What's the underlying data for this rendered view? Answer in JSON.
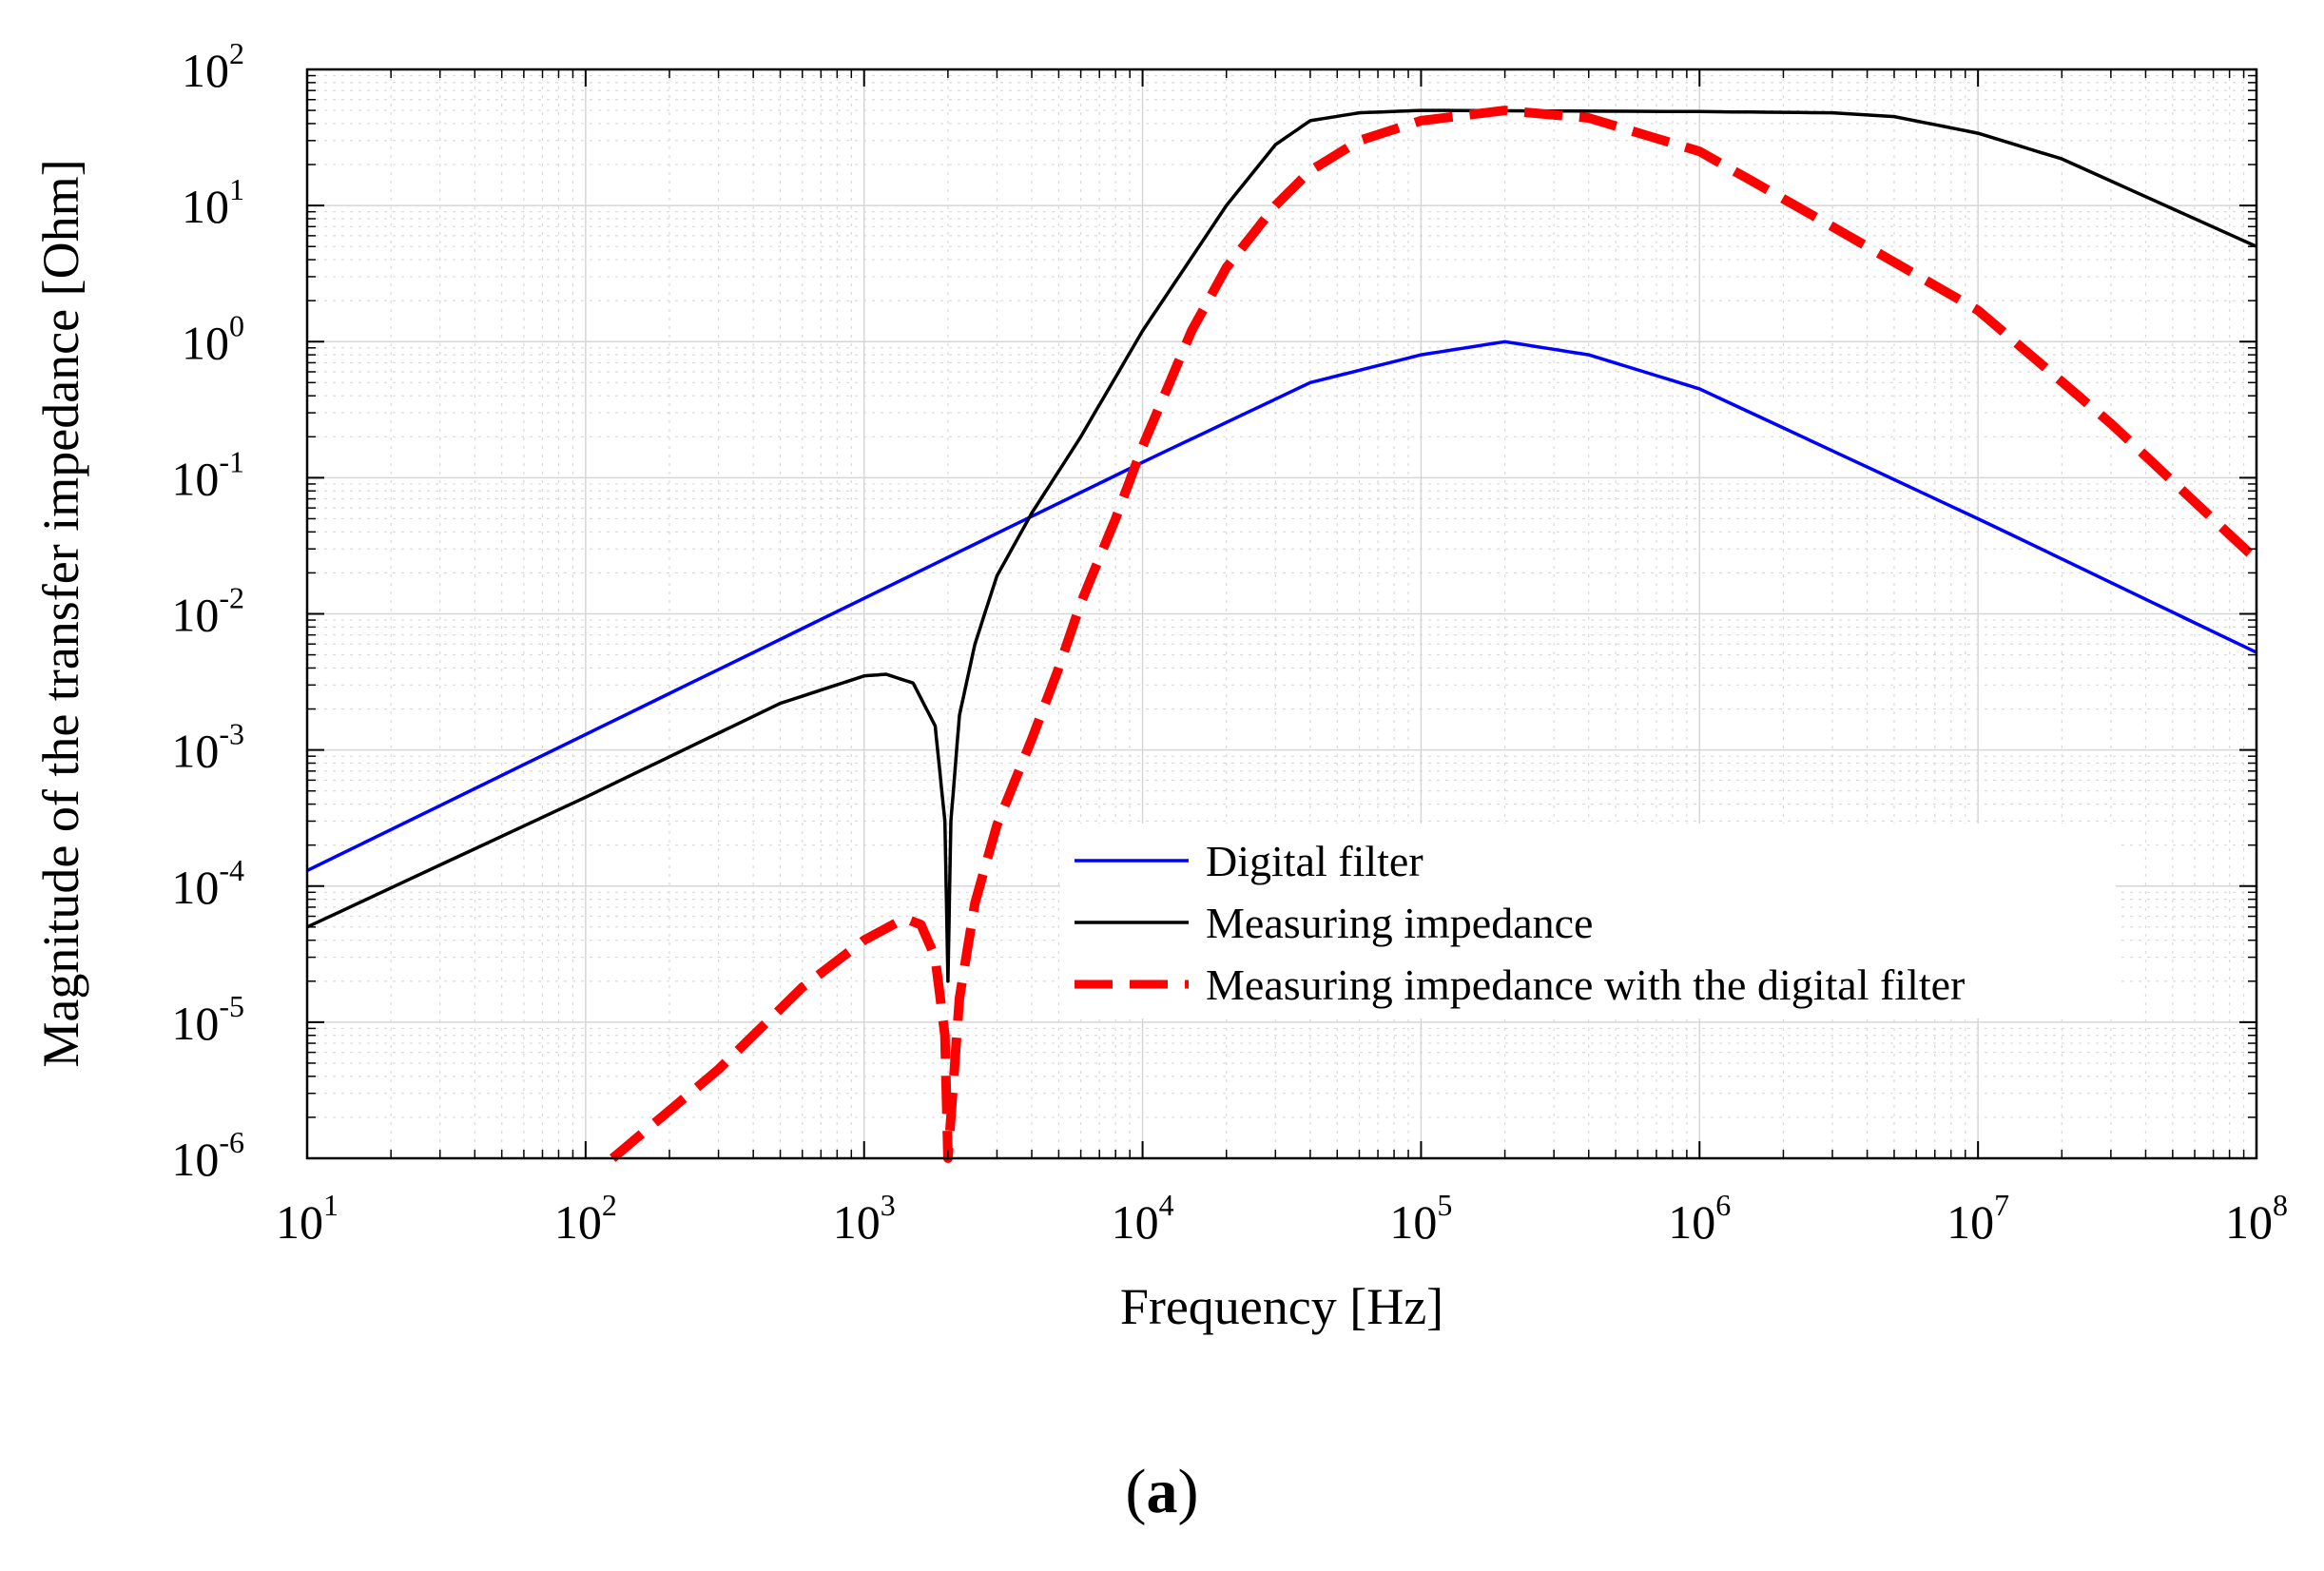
{
  "chart_data": {
    "type": "line",
    "xscale": "log",
    "yscale": "log",
    "xlabel": "Frequency [Hz]",
    "ylabel": "Magnitude of the transfer impedance [Ohm]",
    "xlim": [
      10,
      100000000
    ],
    "ylim": [
      1e-06,
      100
    ],
    "grid": true,
    "legend_position": "lower-center-right",
    "x_ticks": [
      {
        "base": "10",
        "exp": "1"
      },
      {
        "base": "10",
        "exp": "2"
      },
      {
        "base": "10",
        "exp": "3"
      },
      {
        "base": "10",
        "exp": "4"
      },
      {
        "base": "10",
        "exp": "5"
      },
      {
        "base": "10",
        "exp": "6"
      },
      {
        "base": "10",
        "exp": "7"
      },
      {
        "base": "10",
        "exp": "8"
      }
    ],
    "y_ticks": [
      {
        "base": "10",
        "exp": "-6"
      },
      {
        "base": "10",
        "exp": "-5"
      },
      {
        "base": "10",
        "exp": "-4"
      },
      {
        "base": "10",
        "exp": "-3"
      },
      {
        "base": "10",
        "exp": "-2"
      },
      {
        "base": "10",
        "exp": "-1"
      },
      {
        "base": "10",
        "exp": "0"
      },
      {
        "base": "10",
        "exp": "1"
      },
      {
        "base": "10",
        "exp": "2"
      }
    ],
    "series": [
      {
        "name": "Digital filter",
        "color": "#0000ff",
        "style": "solid",
        "points": [
          [
            10,
            0.00013
          ],
          [
            100,
            0.0013
          ],
          [
            1000,
            0.013
          ],
          [
            10000,
            0.13
          ],
          [
            40000,
            0.5
          ],
          [
            100000,
            0.8
          ],
          [
            200000,
            1.0
          ],
          [
            400000,
            0.8
          ],
          [
            1000000,
            0.45
          ],
          [
            10000000,
            0.05
          ],
          [
            100000000,
            0.0052
          ]
        ]
      },
      {
        "name": "Measuring impedance",
        "color": "#000000",
        "style": "solid",
        "points": [
          [
            10,
            5e-05
          ],
          [
            100,
            0.00045
          ],
          [
            500,
            0.0022
          ],
          [
            1000,
            0.0035
          ],
          [
            1200,
            0.0036
          ],
          [
            1500,
            0.0031
          ],
          [
            1800,
            0.0015
          ],
          [
            1950,
            0.0003
          ],
          [
            2000,
            2e-05
          ],
          [
            2050,
            0.0003
          ],
          [
            2200,
            0.0018
          ],
          [
            2500,
            0.006
          ],
          [
            3000,
            0.019
          ],
          [
            4000,
            0.055
          ],
          [
            6000,
            0.2
          ],
          [
            10000,
            1.2
          ],
          [
            20000,
            10
          ],
          [
            30000,
            28
          ],
          [
            40000,
            42
          ],
          [
            60000,
            48
          ],
          [
            100000,
            50
          ],
          [
            1000000,
            49
          ],
          [
            3000000,
            48
          ],
          [
            5000000,
            45
          ],
          [
            10000000,
            34
          ],
          [
            20000000,
            22
          ],
          [
            100000000,
            5
          ]
        ]
      },
      {
        "name": "Measuring impedance with the digital filter",
        "color": "#ff0000",
        "style": "dashed",
        "points": [
          [
            125,
            1e-06
          ],
          [
            300,
            4.5e-06
          ],
          [
            600,
            1.8e-05
          ],
          [
            1000,
            4e-05
          ],
          [
            1400,
            5.8e-05
          ],
          [
            1600,
            5.2e-05
          ],
          [
            1800,
            3e-05
          ],
          [
            1950,
            8e-06
          ],
          [
            2000,
            1e-06
          ],
          [
            2050,
            2e-06
          ],
          [
            2200,
            1.5e-05
          ],
          [
            2500,
            7.5e-05
          ],
          [
            3000,
            0.00028
          ],
          [
            4000,
            0.0012
          ],
          [
            5000,
            0.004
          ],
          [
            6000,
            0.012
          ],
          [
            8000,
            0.05
          ],
          [
            10000,
            0.17
          ],
          [
            15000,
            1.2
          ],
          [
            20000,
            3.5
          ],
          [
            30000,
            10
          ],
          [
            40000,
            18
          ],
          [
            60000,
            30
          ],
          [
            100000,
            42
          ],
          [
            200000,
            50
          ],
          [
            400000,
            44
          ],
          [
            1000000,
            25
          ],
          [
            3000000,
            7
          ],
          [
            10000000,
            1.7
          ],
          [
            30000000,
            0.25
          ],
          [
            100000000,
            0.025
          ]
        ]
      }
    ],
    "caption": "(a)"
  }
}
